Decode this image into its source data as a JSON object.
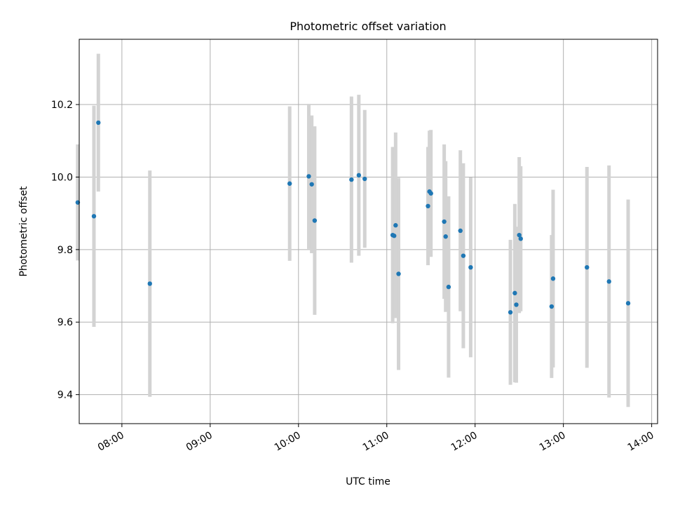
{
  "chart_data": {
    "type": "scatter",
    "title": "Photometric offset variation",
    "xlabel": "UTC time",
    "ylabel": "Photometric offset",
    "x_unit": "UTC time of day",
    "xlim": [
      "07:31",
      "14:04"
    ],
    "ylim": [
      9.32,
      10.38
    ],
    "x_ticks": [
      "08:00",
      "09:00",
      "10:00",
      "11:00",
      "12:00",
      "13:00",
      "14:00"
    ],
    "y_ticks": [
      9.4,
      9.6,
      9.8,
      10.0,
      10.2
    ],
    "grid": true,
    "legend": "none",
    "marker_color": "#1f77b4",
    "errorbar_color": "#d3d3d3",
    "points": [
      {
        "x": "07:30",
        "y": 9.93,
        "err": 0.16
      },
      {
        "x": "07:41",
        "y": 9.892,
        "err": 0.305
      },
      {
        "x": "07:44",
        "y": 10.15,
        "err": 0.19
      },
      {
        "x": "08:19",
        "y": 9.706,
        "err": 0.312
      },
      {
        "x": "09:54",
        "y": 9.982,
        "err": 0.213
      },
      {
        "x": "10:07",
        "y": 10.002,
        "err": 0.2
      },
      {
        "x": "10:09",
        "y": 9.98,
        "err": 0.19
      },
      {
        "x": "10:11",
        "y": 9.88,
        "err": 0.26
      },
      {
        "x": "10:36",
        "y": 9.993,
        "err": 0.229
      },
      {
        "x": "10:41",
        "y": 10.005,
        "err": 0.222
      },
      {
        "x": "10:45",
        "y": 9.995,
        "err": 0.19
      },
      {
        "x": "11:04",
        "y": 9.84,
        "err": 0.243
      },
      {
        "x": "11:05",
        "y": 9.838,
        "err": 0.226
      },
      {
        "x": "11:06",
        "y": 9.867,
        "err": 0.256
      },
      {
        "x": "11:08",
        "y": 9.733,
        "err": 0.265
      },
      {
        "x": "11:28",
        "y": 9.92,
        "err": 0.163
      },
      {
        "x": "11:29",
        "y": 9.96,
        "err": 0.168
      },
      {
        "x": "11:30",
        "y": 9.955,
        "err": 0.175
      },
      {
        "x": "11:39",
        "y": 9.877,
        "err": 0.213
      },
      {
        "x": "11:40",
        "y": 9.836,
        "err": 0.208
      },
      {
        "x": "11:42",
        "y": 9.697,
        "err": 0.25
      },
      {
        "x": "11:50",
        "y": 9.852,
        "err": 0.222
      },
      {
        "x": "11:52",
        "y": 9.783,
        "err": 0.255
      },
      {
        "x": "11:57",
        "y": 9.751,
        "err": 0.248
      },
      {
        "x": "12:24",
        "y": 9.627,
        "err": 0.2
      },
      {
        "x": "12:27",
        "y": 9.68,
        "err": 0.246
      },
      {
        "x": "12:28",
        "y": 9.648,
        "err": 0.215
      },
      {
        "x": "12:30",
        "y": 9.84,
        "err": 0.215
      },
      {
        "x": "12:31",
        "y": 9.83,
        "err": 0.2
      },
      {
        "x": "12:52",
        "y": 9.643,
        "err": 0.197
      },
      {
        "x": "12:53",
        "y": 9.72,
        "err": 0.245
      },
      {
        "x": "13:16",
        "y": 9.751,
        "err": 0.277
      },
      {
        "x": "13:31",
        "y": 9.712,
        "err": 0.32
      },
      {
        "x": "13:44",
        "y": 9.652,
        "err": 0.286
      }
    ]
  }
}
